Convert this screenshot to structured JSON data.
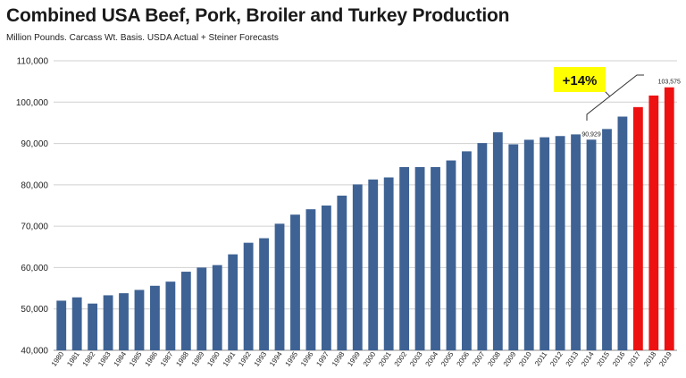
{
  "chart_data": {
    "type": "bar",
    "title": "Combined USA Beef, Pork, Broiler and Turkey Production",
    "subtitle": "Million Pounds.  Carcass Wt. Basis.  USDA Actual + Steiner Forecasts",
    "xlabel": "",
    "ylabel": "",
    "ylim": [
      40000,
      110000
    ],
    "yticks": [
      "40,000",
      "50,000",
      "60,000",
      "70,000",
      "80,000",
      "90,000",
      "100,000",
      "110,000"
    ],
    "grid": true,
    "categories": [
      "1980",
      "1981",
      "1982",
      "1983",
      "1984",
      "1985",
      "1986",
      "1987",
      "1988",
      "1989",
      "1990",
      "1991",
      "1992",
      "1993",
      "1994",
      "1995",
      "1996",
      "1997",
      "1998",
      "1999",
      "2000",
      "2001",
      "2002",
      "2003",
      "2004",
      "2005",
      "2006",
      "2007",
      "2008",
      "2009",
      "2010",
      "2011",
      "2012",
      "2013",
      "2014",
      "2015",
      "2016",
      "2017",
      "2018",
      "2019"
    ],
    "values": [
      52000,
      52800,
      51300,
      53300,
      53800,
      54600,
      55600,
      56600,
      59000,
      60000,
      60600,
      63200,
      66000,
      67100,
      70600,
      72800,
      74100,
      75000,
      77400,
      80100,
      81300,
      81800,
      84300,
      84300,
      84300,
      85900,
      88100,
      90100,
      92700,
      89800,
      90900,
      91500,
      91800,
      92200,
      90929,
      93500,
      96500,
      98800,
      101600,
      103575
    ],
    "colors": {
      "actual": "#3e6294",
      "forecast": "#ee1111"
    },
    "forecast_categories": [
      "2017",
      "2018",
      "2019"
    ],
    "data_labels": [
      {
        "category": "2014",
        "text": "90,929"
      },
      {
        "category": "2019",
        "text": "103,575"
      }
    ],
    "annotation": {
      "text": "+14%",
      "background": "#ffff00"
    }
  }
}
